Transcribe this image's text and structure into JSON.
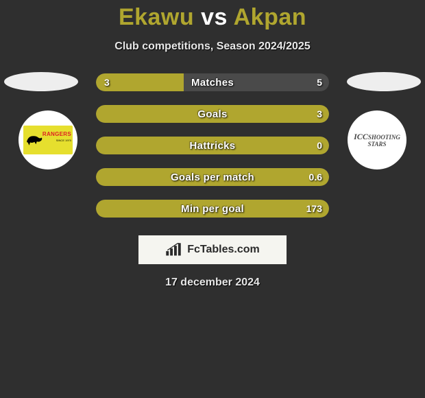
{
  "background_color": "#2f2f2f",
  "title": {
    "player1": "Ekawu",
    "vs": "vs",
    "player2": "Akpan",
    "player1_color": "#b0a62f",
    "vs_color": "#ffffff",
    "player2_color": "#b0a62f",
    "fontsize": 34
  },
  "subtitle": "Club competitions, Season 2024/2025",
  "left_club": {
    "card_bg": "#e6df2e",
    "name": "RANGERS",
    "name_color": "#d22222",
    "sub": "SINCE 1970"
  },
  "right_club": {
    "bg": "#ffffff",
    "line1": "ICC",
    "line2": "SHOOTING STARS",
    "text_color": "#4a4a4a"
  },
  "bars": {
    "track_color": "#4a4a4a",
    "fill_color": "#b0a62f",
    "label_color": "#ffffff",
    "value_color": "#ffffff",
    "label_fontsize": 15,
    "value_fontsize": 14,
    "rows": [
      {
        "label": "Matches",
        "left": "3",
        "right": "5",
        "fill_pct": 37.5
      },
      {
        "label": "Goals",
        "left": "",
        "right": "3",
        "fill_pct": 100
      },
      {
        "label": "Hattricks",
        "left": "",
        "right": "0",
        "fill_pct": 100
      },
      {
        "label": "Goals per match",
        "left": "",
        "right": "0.6",
        "fill_pct": 100
      },
      {
        "label": "Min per goal",
        "left": "",
        "right": "173",
        "fill_pct": 100
      }
    ]
  },
  "logo_text": "FcTables.com",
  "logo_bg": "#f5f5f0",
  "date": "17 december 2024"
}
